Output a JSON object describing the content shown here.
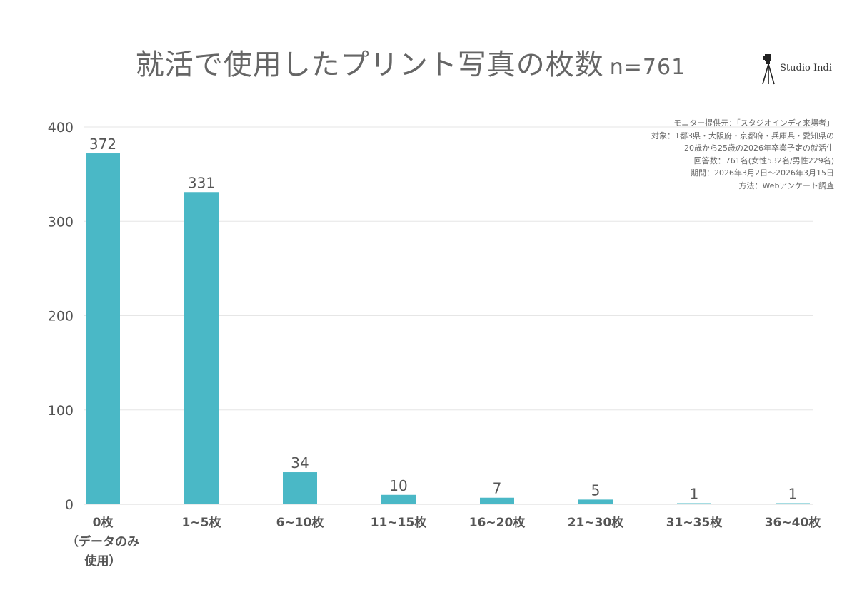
{
  "title": "就活で使用したプリント写真の枚数",
  "sample_size": "n=761",
  "logo": {
    "text": "Studio Indi",
    "icon": "camera-tripod-icon"
  },
  "notes": [
    "モニター提供元：「スタジオインディ来場者」",
    "対象：1都3県・大阪府・京都府・兵庫県・愛知県の",
    "20歳から25歳の2026年卒業予定の就活生",
    "回答数：761名(女性532名/男性229名)",
    "期間：2026年3月2日～2026年3月15日",
    "方法：Webアンケート調査"
  ],
  "colors": {
    "bar": "#4ab8c6",
    "grid": "#e6e6e6",
    "text": "#555555"
  },
  "chart_data": {
    "type": "bar",
    "categories": [
      "0枚\n（データのみ\n使用）",
      "1~5枚",
      "6~10枚",
      "11~15枚",
      "16~20枚",
      "21~30枚",
      "31~35枚",
      "36~40枚"
    ],
    "values": [
      372,
      331,
      34,
      10,
      7,
      5,
      1,
      1
    ],
    "data_labels": [
      "372",
      "331",
      "34",
      "10",
      "7",
      "5",
      "1",
      "1"
    ],
    "yticks": [
      "0",
      "100",
      "200",
      "300",
      "400"
    ],
    "ylim": [
      0,
      400
    ],
    "grid": true,
    "legend": "none"
  }
}
